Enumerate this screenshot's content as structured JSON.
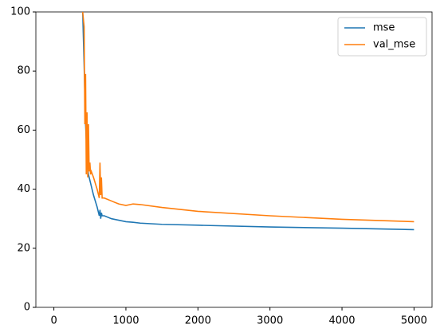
{
  "chart_data": {
    "type": "line",
    "x": [
      400,
      420,
      430,
      440,
      450,
      460,
      470,
      480,
      490,
      500,
      510,
      520,
      550,
      600,
      630,
      640,
      650,
      660,
      670,
      700,
      800,
      900,
      1000,
      1100,
      1200,
      1500,
      2000,
      3000,
      4000,
      5000
    ],
    "series": [
      {
        "name": "mse",
        "color": "#1f77b4",
        "values": [
          100,
          82,
          72,
          62,
          57,
          50,
          47,
          45,
          44,
          43,
          42,
          41,
          38,
          34,
          31,
          33,
          30,
          32,
          31,
          31,
          30,
          29.5,
          29,
          28.8,
          28.5,
          28.1,
          27.8,
          27.2,
          26.8,
          26.3
        ]
      },
      {
        "name": "val_mse",
        "color": "#ff7f0e",
        "values": [
          100,
          95,
          62,
          79,
          45,
          66,
          44,
          62,
          46,
          49,
          45,
          46,
          44,
          40,
          37,
          49,
          38,
          44,
          37,
          37,
          36,
          35,
          34.5,
          35,
          34.8,
          33.8,
          32.5,
          31,
          29.8,
          29
        ]
      }
    ],
    "xlim": [
      -250,
      5250
    ],
    "xticks": [
      0,
      1000,
      2000,
      3000,
      4000,
      5000
    ],
    "ylim": [
      0,
      100
    ],
    "yticks": [
      0,
      20,
      40,
      60,
      80,
      100
    ],
    "legend": "upper right"
  }
}
